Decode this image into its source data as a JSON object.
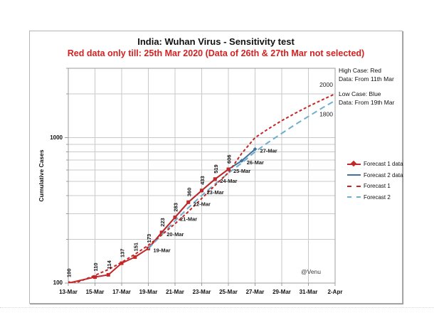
{
  "page": {
    "watermark": "@Venu"
  },
  "chart": {
    "title": "India: Wuhan Virus - Sensitivity test",
    "subtitle": "Red data only till: 25th Mar 2020 (Data of 26th & 27th Mar not selected)",
    "y_axis_label": "Cumulative Cases",
    "annotations": {
      "high": {
        "line1": "High Case: Red",
        "line2": "Data: From 11th Mar"
      },
      "low": {
        "line1": "Low Case: Blue",
        "line2": "Data: From 19th Mar"
      }
    },
    "legend": [
      "Forecast 1 data",
      "Forecast 2 data",
      "Forecast 1",
      "Forecast 2"
    ]
  },
  "chart_data": {
    "type": "line",
    "title": "India: Wuhan Virus - Sensitivity test",
    "subtitle": "Red data only till: 25th Mar 2020 (Data of 26th & 27th Mar not selected)",
    "x_axis": {
      "tick_labels": [
        "13-Mar",
        "15-Mar",
        "17-Mar",
        "19-Mar",
        "21-Mar",
        "23-Mar",
        "25-Mar",
        "27-Mar",
        "29-Mar",
        "31-Mar",
        "2-Apr"
      ],
      "start_date": "13-Mar",
      "days_total": 20,
      "tick_every_days": 2,
      "grid": true
    },
    "y_axis": {
      "label": "Cumulative Cases",
      "scale": "log",
      "ylim": [
        100,
        3000
      ],
      "tick_labels": [
        {
          "value": 1000,
          "label": "1000"
        },
        {
          "value": 100,
          "label": "100"
        }
      ],
      "gridlines": [
        200,
        300,
        400,
        500,
        600,
        700,
        800,
        900,
        1000,
        2000,
        3000
      ],
      "grid": true
    },
    "legend_position": "right",
    "colors": {
      "red": "#c42727",
      "steel_blue": "#41719c",
      "light_blue": "#6faece",
      "gridline": "#c9c9c9",
      "axis": "#9c9c9c",
      "subtitle_red": "#d42121"
    },
    "series": [
      {
        "name": "Forecast 1 data",
        "style": "solid",
        "color": "#c42727",
        "marker": "square",
        "label_style": "value-rotated",
        "days": [
          0,
          2,
          3,
          4,
          5,
          6,
          7,
          8,
          9,
          10,
          11,
          12
        ],
        "dates": [
          "13-Mar",
          "15-Mar",
          "16-Mar",
          "17-Mar",
          "18-Mar",
          "19-Mar",
          "20-Mar",
          "21-Mar",
          "22-Mar",
          "23-Mar",
          "24-Mar",
          "25-Mar"
        ],
        "values": [
          100,
          110,
          114,
          137,
          151,
          173,
          223,
          283,
          360,
          433,
          519,
          606
        ],
        "point_labels": [
          "100",
          "110",
          "114",
          "137",
          "151",
          "173",
          "223",
          "283",
          "360",
          "433",
          "519",
          "606"
        ]
      },
      {
        "name": "Forecast 2 data",
        "style": "solid",
        "color": "#41719c",
        "marker": "diamond",
        "label_style": "date-right",
        "days": [
          6,
          7,
          8,
          9,
          10,
          11,
          12,
          13,
          14
        ],
        "dates": [
          "19-Mar",
          "20-Mar",
          "21-Mar",
          "22-Mar",
          "23-Mar",
          "24-Mar",
          "25-Mar",
          "26-Mar",
          "27-Mar"
        ],
        "values": [
          173,
          223,
          283,
          360,
          433,
          519,
          606,
          694,
          834
        ],
        "point_labels": [
          "19-Mar",
          "20-Mar",
          "21-Mar",
          "22-Mar",
          "23-Mar",
          "24-Mar",
          "25-Mar",
          "26-Mar",
          "27-Mar"
        ]
      },
      {
        "name": "Forecast 1",
        "style": "dashed",
        "color": "#c42727",
        "dash": [
          4,
          3
        ],
        "days": [
          0,
          1,
          2,
          3,
          4,
          5,
          6,
          7,
          8,
          9,
          10,
          11,
          12,
          13,
          14,
          15,
          16,
          17,
          18,
          19,
          20
        ],
        "values": [
          96,
          104,
          113,
          124,
          139,
          158,
          182,
          214,
          256,
          310,
          382,
          470,
          575,
          780,
          1000,
          1150,
          1310,
          1470,
          1640,
          1815,
          2000
        ],
        "end_label": "2000",
        "end_label_pos": "above"
      },
      {
        "name": "Forecast 2",
        "style": "dashed",
        "color": "#6faece",
        "dash": [
          8,
          5
        ],
        "days": [
          6,
          7,
          8,
          9,
          10,
          11,
          12,
          13,
          14,
          15,
          16,
          17,
          18,
          19,
          20
        ],
        "values": [
          172,
          215,
          268,
          330,
          400,
          480,
          570,
          670,
          800,
          930,
          1070,
          1230,
          1400,
          1595,
          1800
        ],
        "end_label": "1800",
        "end_label_pos": "below"
      }
    ]
  }
}
